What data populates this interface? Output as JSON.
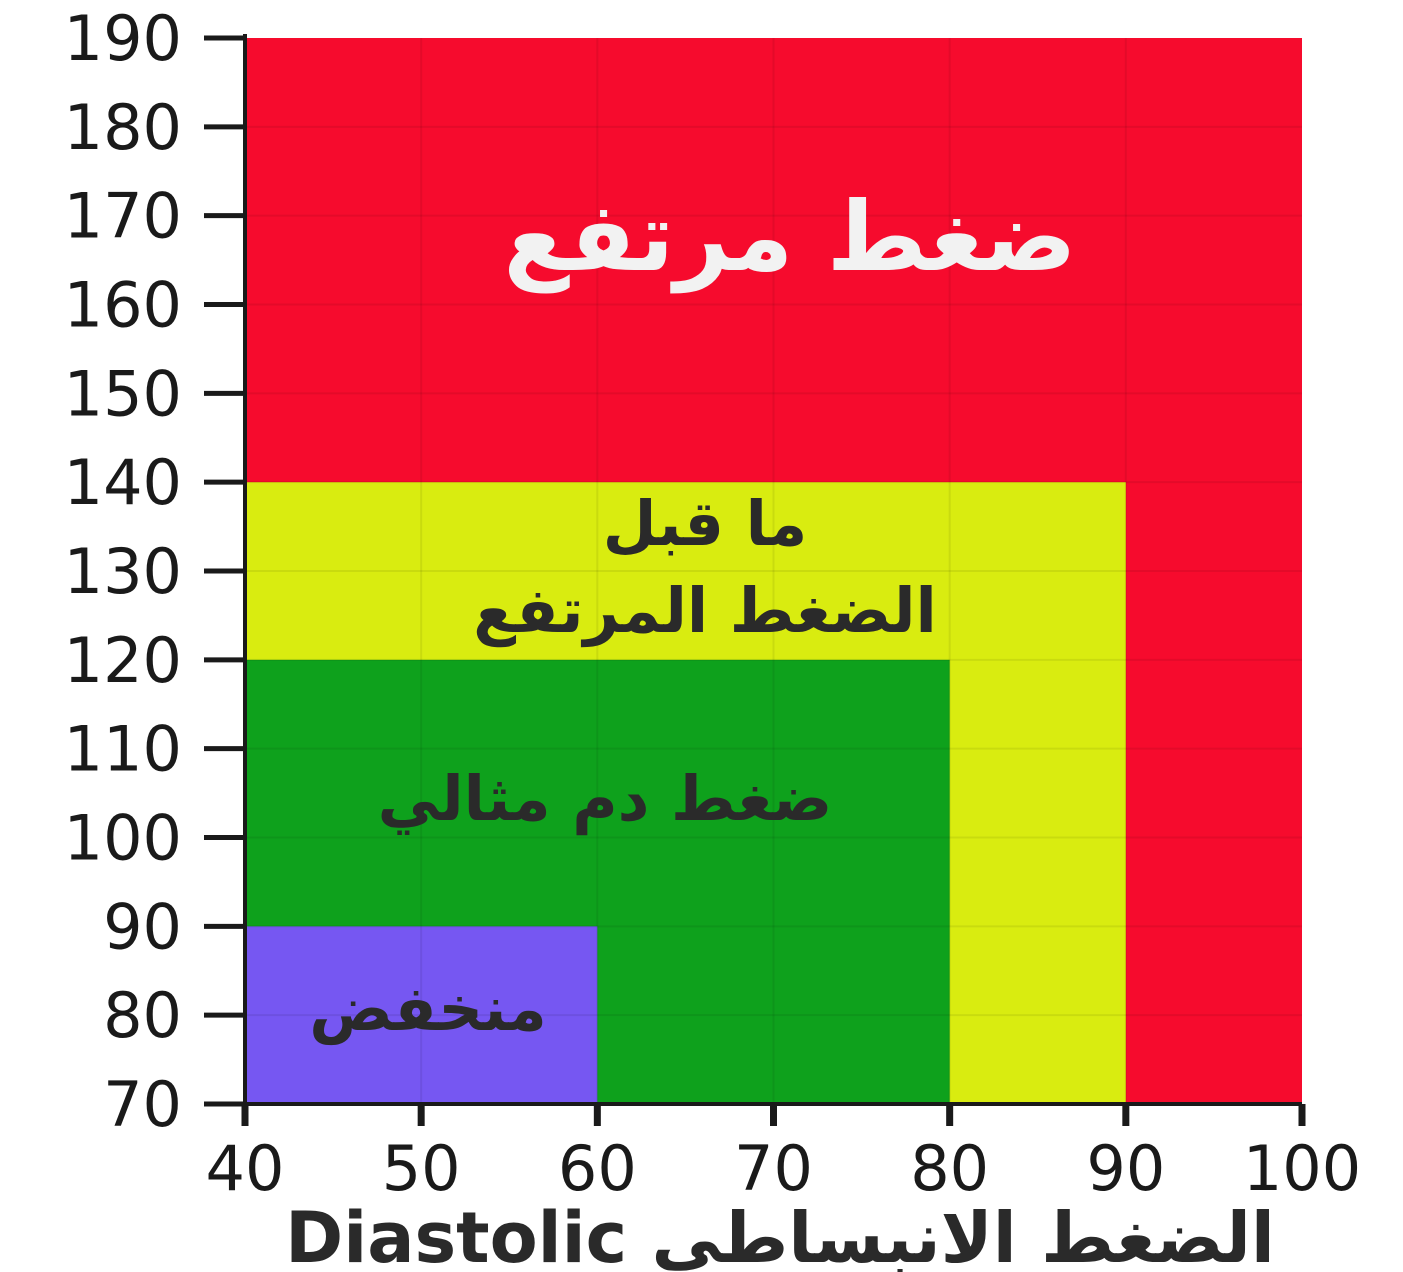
{
  "chart_data": {
    "type": "area",
    "title": "",
    "xlabel": "Diastolic الضغط الانبساطي",
    "ylabel": "",
    "xlim": [
      40,
      100
    ],
    "ylim": [
      70,
      190
    ],
    "x_ticks": [
      40,
      50,
      60,
      70,
      80,
      90,
      100
    ],
    "y_ticks": [
      190,
      180,
      170,
      160,
      150,
      140,
      130,
      120,
      110,
      100,
      90,
      80,
      70
    ],
    "grid": true,
    "zones": [
      {
        "label": "ضغط مرتفع",
        "x_max": 100,
        "y_max": 190,
        "color": "#f60b2d",
        "label_color": "#f2f2f2"
      },
      {
        "label": "ما قبل الضغط المرتفع",
        "x_max": 90,
        "y_max": 140,
        "color": "#d9ec10",
        "label_color": "#2a2a2a"
      },
      {
        "label": "ضغط دم مثالي",
        "x_max": 80,
        "y_max": 120,
        "color": "#0ea11c",
        "label_color": "#2a2a2a"
      },
      {
        "label": "منخفض",
        "x_max": 60,
        "y_max": 90,
        "color": "#7657f2",
        "label_color": "#2a2a2a"
      }
    ]
  }
}
